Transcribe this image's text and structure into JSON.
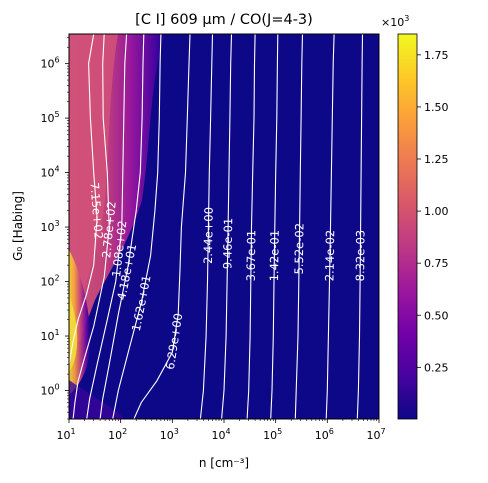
{
  "chart_data": {
    "type": "heatmap",
    "title": "[C I] 609 µm / CO(J=4-3)",
    "xlabel": "n [cm⁻³]",
    "ylabel": "G₀ [Habing]",
    "xscale": "log",
    "yscale": "log",
    "xlim": [
      10,
      10000000
    ],
    "ylim": [
      0.3,
      3500000
    ],
    "x_ticks": [
      {
        "value": 10,
        "base": "10",
        "exp": "1"
      },
      {
        "value": 100,
        "base": "10",
        "exp": "2"
      },
      {
        "value": 1000,
        "base": "10",
        "exp": "3"
      },
      {
        "value": 10000,
        "base": "10",
        "exp": "4"
      },
      {
        "value": 100000,
        "base": "10",
        "exp": "5"
      },
      {
        "value": 1000000,
        "base": "10",
        "exp": "6"
      },
      {
        "value": 10000000,
        "base": "10",
        "exp": "7"
      }
    ],
    "y_ticks": [
      {
        "value": 1,
        "base": "10",
        "exp": "0"
      },
      {
        "value": 10,
        "base": "10",
        "exp": "1"
      },
      {
        "value": 100,
        "base": "10",
        "exp": "2"
      },
      {
        "value": 1000,
        "base": "10",
        "exp": "3"
      },
      {
        "value": 10000,
        "base": "10",
        "exp": "4"
      },
      {
        "value": 100000,
        "base": "10",
        "exp": "5"
      },
      {
        "value": 1000000,
        "base": "10",
        "exp": "6"
      }
    ],
    "colorbar": {
      "colormap": "plasma",
      "range": [
        0.002,
        1.85
      ],
      "ticks": [
        "0.25",
        "0.50",
        "0.75",
        "1.00",
        "1.25",
        "1.50",
        "1.75"
      ],
      "tick_values": [
        0.25,
        0.5,
        0.75,
        1.0,
        1.25,
        1.5,
        1.75
      ],
      "multiplier_base": "×10",
      "multiplier_exp": "3"
    },
    "contours": [
      {
        "label": "7.15e+02",
        "value": 715,
        "points": [
          [
            30,
            3500000
          ],
          [
            24,
            1000000
          ],
          [
            26,
            100000
          ],
          [
            30,
            10000
          ],
          [
            35,
            1500
          ],
          [
            30,
            200
          ],
          [
            22,
            60
          ],
          [
            15,
            20
          ],
          [
            12,
            8
          ],
          [
            10,
            3
          ]
        ]
      },
      {
        "label": "2.78e+02",
        "value": 278,
        "points": [
          [
            48,
            3500000
          ],
          [
            45,
            1000000
          ],
          [
            46,
            100000
          ],
          [
            55,
            10000
          ],
          [
            60,
            1000
          ],
          [
            48,
            120
          ],
          [
            30,
            15
          ],
          [
            20,
            4
          ],
          [
            15,
            1.5
          ],
          [
            13,
            0.6
          ],
          [
            12,
            0.3
          ]
        ]
      },
      {
        "label": "1.08e+02",
        "value": 108,
        "points": [
          [
            130,
            3500000
          ],
          [
            120,
            1000000
          ],
          [
            115,
            100000
          ],
          [
            110,
            10000
          ],
          [
            105,
            1000
          ],
          [
            80,
            100
          ],
          [
            55,
            20
          ],
          [
            35,
            3
          ],
          [
            25,
            0.7
          ],
          [
            22,
            0.3
          ]
        ]
      },
      {
        "label": "4.18e+01",
        "value": 41.8,
        "points": [
          [
            280,
            3500000
          ],
          [
            270,
            1000000
          ],
          [
            260,
            100000
          ],
          [
            240,
            10000
          ],
          [
            200,
            2000
          ],
          [
            140,
            200
          ],
          [
            90,
            25
          ],
          [
            60,
            3
          ],
          [
            45,
            0.7
          ],
          [
            40,
            0.3
          ]
        ]
      },
      {
        "label": "1.62e+01",
        "value": 16.2,
        "points": [
          [
            600,
            3500000
          ],
          [
            580,
            1000000
          ],
          [
            560,
            100000
          ],
          [
            520,
            10000
          ],
          [
            460,
            2000
          ],
          [
            380,
            300
          ],
          [
            250,
            40
          ],
          [
            140,
            5
          ],
          [
            90,
            1
          ],
          [
            70,
            0.3
          ]
        ]
      },
      {
        "label": "6.29e+00",
        "value": 6.29,
        "points": [
          [
            2200,
            3500000
          ],
          [
            2100,
            1000000
          ],
          [
            1950,
            100000
          ],
          [
            1800,
            10000
          ],
          [
            1500,
            1000
          ],
          [
            1400,
            150
          ],
          [
            1300,
            25
          ],
          [
            1000,
            5
          ],
          [
            500,
            1.5
          ],
          [
            250,
            0.6
          ],
          [
            180,
            0.3
          ]
        ]
      },
      {
        "label": "2.44e+00",
        "value": 2.44,
        "points": [
          [
            6000,
            3500000
          ],
          [
            5800,
            1000000
          ],
          [
            5500,
            100000
          ],
          [
            5200,
            10000
          ],
          [
            5000,
            1000
          ],
          [
            4800,
            100
          ],
          [
            4500,
            10
          ],
          [
            4000,
            1
          ],
          [
            3500,
            0.3
          ]
        ]
      },
      {
        "label": "9.46e-01",
        "value": 0.946,
        "points": [
          [
            14000,
            3500000
          ],
          [
            13500,
            1000000
          ],
          [
            13000,
            100000
          ],
          [
            12500,
            10000
          ],
          [
            12000,
            1000
          ],
          [
            11500,
            100
          ],
          [
            11000,
            10
          ],
          [
            10000,
            1
          ],
          [
            9000,
            0.3
          ]
        ]
      },
      {
        "label": "3.67e-01",
        "value": 0.367,
        "points": [
          [
            40000,
            3500000
          ],
          [
            39000,
            1000000
          ],
          [
            38000,
            100000
          ],
          [
            36000,
            10000
          ],
          [
            34000,
            1000
          ],
          [
            33000,
            100
          ],
          [
            32000,
            10
          ],
          [
            30000,
            1
          ],
          [
            28000,
            0.3
          ]
        ]
      },
      {
        "label": "1.42e-01",
        "value": 0.142,
        "points": [
          [
            110000,
            3500000
          ],
          [
            108000,
            1000000
          ],
          [
            105000,
            100000
          ],
          [
            100000,
            10000
          ],
          [
            96000,
            1000
          ],
          [
            93000,
            100
          ],
          [
            90000,
            10
          ],
          [
            85000,
            1
          ],
          [
            80000,
            0.3
          ]
        ]
      },
      {
        "label": "5.52e-02",
        "value": 0.0552,
        "points": [
          [
            330000,
            3500000
          ],
          [
            320000,
            1000000
          ],
          [
            310000,
            100000
          ],
          [
            300000,
            10000
          ],
          [
            290000,
            1000
          ],
          [
            280000,
            100
          ],
          [
            270000,
            10
          ],
          [
            250000,
            1
          ],
          [
            240000,
            0.3
          ]
        ]
      },
      {
        "label": "2.14e-02",
        "value": 0.0214,
        "points": [
          [
            1350000,
            3500000
          ],
          [
            1300000,
            1000000
          ],
          [
            1250000,
            100000
          ],
          [
            1200000,
            10000
          ],
          [
            1150000,
            1000
          ],
          [
            1100000,
            100
          ],
          [
            1050000,
            10
          ],
          [
            1000000,
            1
          ],
          [
            950000,
            0.3
          ]
        ]
      },
      {
        "label": "8.32e-03",
        "value": 0.00832,
        "points": [
          [
            4800000,
            3500000
          ],
          [
            4700000,
            1000000
          ],
          [
            4600000,
            100000
          ],
          [
            4500000,
            10000
          ],
          [
            4400000,
            1000
          ],
          [
            4300000,
            100
          ],
          [
            4200000,
            10
          ],
          [
            4000000,
            1
          ],
          [
            3800000,
            0.3
          ]
        ]
      }
    ],
    "grid": false
  }
}
